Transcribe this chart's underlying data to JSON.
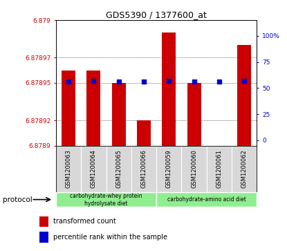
{
  "title": "GDS5390 / 1377600_at",
  "samples": [
    "GSM1200063",
    "GSM1200064",
    "GSM1200065",
    "GSM1200066",
    "GSM1200059",
    "GSM1200060",
    "GSM1200061",
    "GSM1200062"
  ],
  "red_values": [
    6.87896,
    6.87896,
    6.87895,
    6.87892,
    6.87899,
    6.87895,
    6.8789,
    6.87898
  ],
  "blue_values": [
    56,
    57,
    56,
    56,
    57,
    56,
    56,
    57
  ],
  "ylim_left": [
    6.8789,
    6.879
  ],
  "yticks_left": [
    6.8789,
    6.87892,
    6.87895,
    6.87897,
    6.879
  ],
  "ytick_labels_left": [
    "6.8789",
    "6.87892",
    "6.87895",
    "6.87897",
    "6.879"
  ],
  "yticks_right": [
    0,
    25,
    50,
    75,
    100
  ],
  "ytick_labels_right": [
    "0",
    "25",
    "50",
    "75",
    "100%"
  ],
  "bar_bottom": 6.8789,
  "blue_marker_size": 4,
  "protocol_label": "protocol",
  "legend_red_label": "transformed count",
  "legend_blue_label": "percentile rank within the sample",
  "bg_color": "#d8d8d8",
  "green_color": "#90ee90",
  "bar_color": "#cc0000",
  "dot_color": "#0000cc",
  "grid_color": "#000000",
  "left_tick_color": "#cc0000",
  "right_tick_color": "#0000cc",
  "group1_label_line1": "carbohydrate-whey protein",
  "group1_label_line2": "hydrolysate diet",
  "group2_label": "carbohydrate-amino acid diet"
}
